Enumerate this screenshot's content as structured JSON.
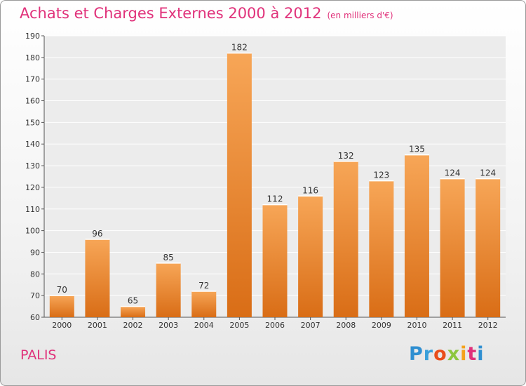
{
  "header": {
    "title": "Achats et Charges Externes 2000 à 2012",
    "subtitle": "(en milliers d'€)"
  },
  "footer": {
    "commune": "PALIS",
    "logo_letters": [
      "P",
      "r",
      "o",
      "x",
      "i",
      "t",
      "i"
    ],
    "logo_colors": [
      "#2f8fd1",
      "#3aa0da",
      "#e94e1b",
      "#8cc63f",
      "#f4a21b",
      "#e0317a",
      "#2f8fd1"
    ]
  },
  "colors": {
    "bar_top": "#f7a657",
    "bar_bottom": "#d96d16",
    "axis": "#555555",
    "grid": "#ffffff",
    "title": "#e0317a"
  },
  "chart_data": {
    "type": "bar",
    "title": "Achats et Charges Externes 2000 à 2012",
    "xlabel": "",
    "ylabel": "",
    "categories": [
      "2000",
      "2001",
      "2002",
      "2003",
      "2004",
      "2005",
      "2006",
      "2007",
      "2008",
      "2009",
      "2010",
      "2011",
      "2012"
    ],
    "values": [
      70,
      96,
      65,
      85,
      72,
      182,
      112,
      116,
      132,
      123,
      135,
      124,
      124
    ],
    "ylim": [
      60,
      190
    ],
    "yticks": [
      60,
      70,
      80,
      90,
      100,
      110,
      120,
      130,
      140,
      150,
      160,
      170,
      180,
      190
    ],
    "grid": true
  }
}
